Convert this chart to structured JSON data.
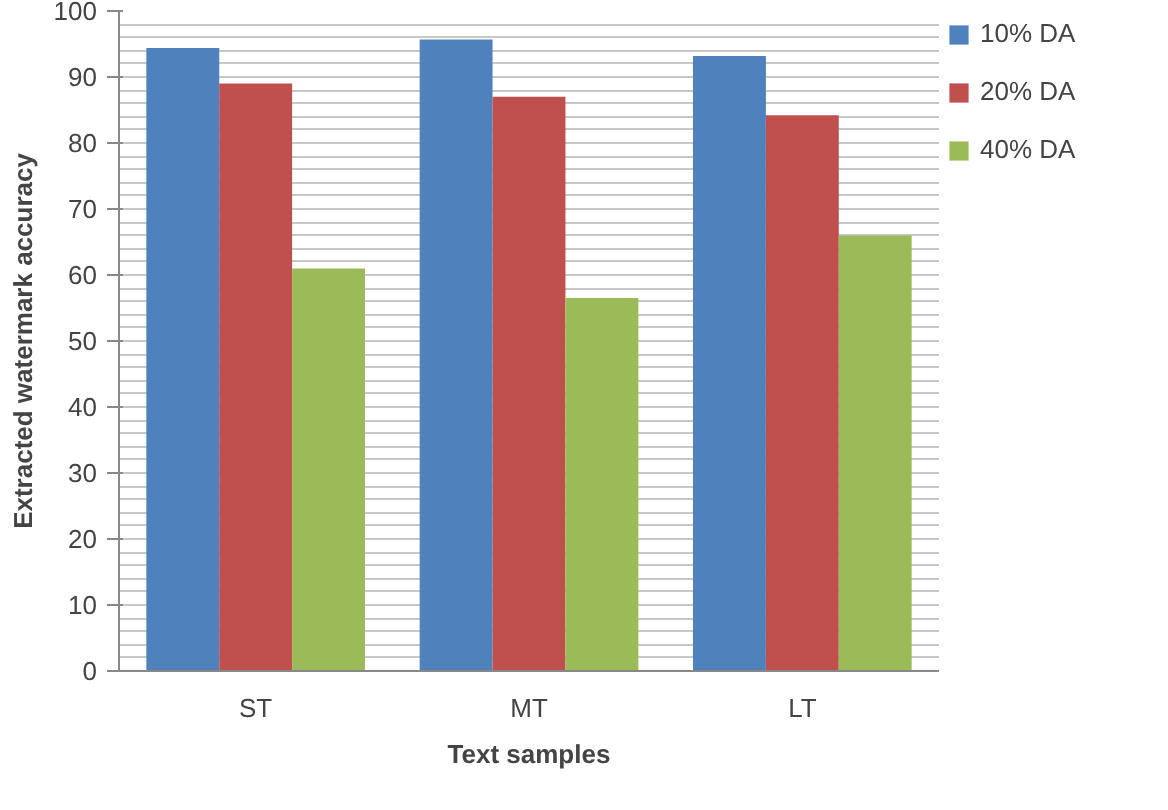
{
  "chart_data": {
    "type": "bar",
    "xlabel": "Text samples",
    "ylabel": "Extracted watermark accuracy",
    "categories": [
      "ST",
      "MT",
      "LT"
    ],
    "series": [
      {
        "name": "10% DA",
        "color": "#4f81bd",
        "values": [
          94.4,
          95.7,
          93.2
        ]
      },
      {
        "name": "20% DA",
        "color": "#c0504d",
        "values": [
          89,
          87,
          84.2
        ]
      },
      {
        "name": "40% DA",
        "color": "#9bbb59",
        "values": [
          61,
          56.5,
          66
        ]
      }
    ],
    "ylim": [
      0,
      100
    ],
    "yticks": [
      0,
      10,
      20,
      30,
      40,
      50,
      60,
      70,
      80,
      90,
      100
    ],
    "grid": "y",
    "legend": "right"
  }
}
